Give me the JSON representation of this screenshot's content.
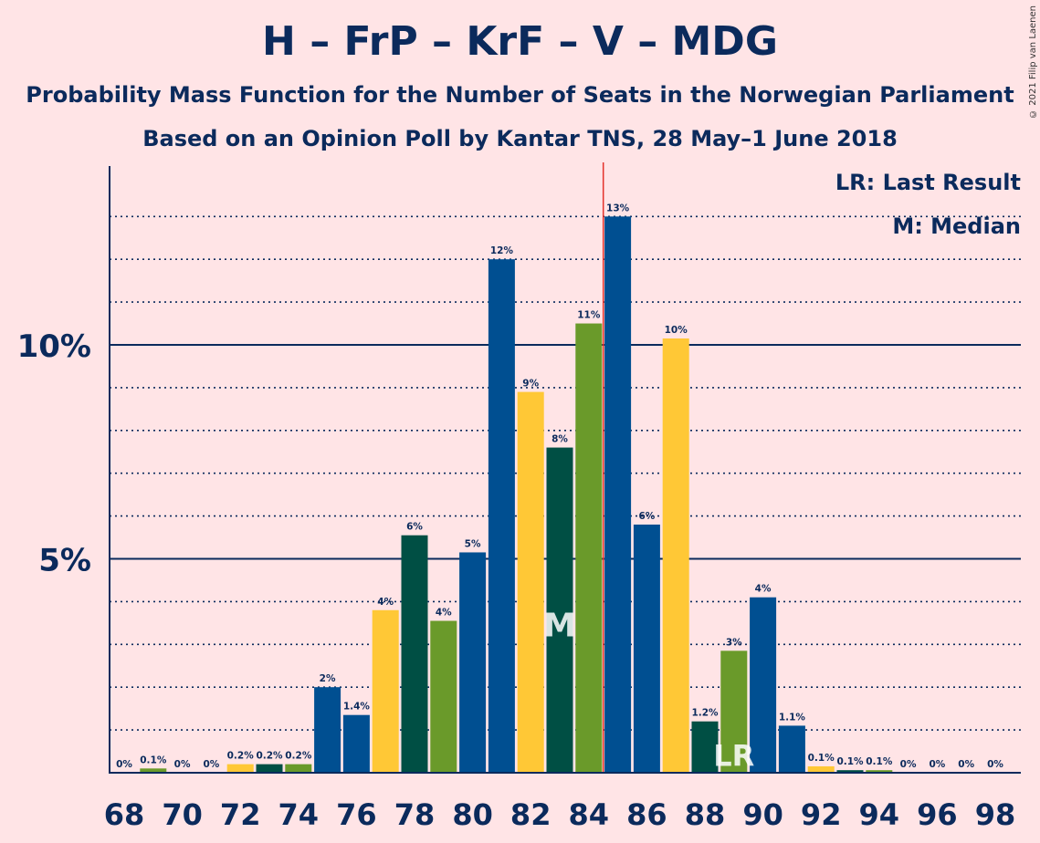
{
  "title": "H – FrP – KrF – V – MDG",
  "subtitle1": "Probability Mass Function for the Number of Seats in the Norwegian Parliament",
  "subtitle2": "Based on an Opinion Poll by Kantar TNS, 28 May–1 June 2018",
  "copyright": "© 2021 Filip van Laenen",
  "legend": {
    "lr": "LR: Last Result",
    "m": "M: Median"
  },
  "colors": {
    "background": "#FFE4E6",
    "navy": "#0B2A5C",
    "blue": "#004F91",
    "yellow": "#FFC836",
    "darkgreen": "#004F44",
    "olive": "#6A9A2A",
    "red": "#E4322B"
  },
  "chart_data": {
    "type": "bar",
    "x": [
      68,
      69,
      70,
      71,
      72,
      73,
      74,
      75,
      76,
      77,
      78,
      79,
      80,
      81,
      82,
      83,
      84,
      85,
      86,
      87,
      88,
      89,
      90,
      91,
      92,
      93,
      94,
      95,
      96,
      97,
      98
    ],
    "values": [
      0,
      0.1,
      0,
      0,
      0.2,
      0.2,
      0.2,
      2,
      1.35,
      3.8,
      5.55,
      3.55,
      5.15,
      12,
      8.9,
      7.6,
      10.5,
      13,
      5.8,
      10.15,
      1.2,
      2.85,
      4.1,
      1.1,
      0.15,
      0.06,
      0.06,
      0,
      0,
      0,
      0
    ],
    "labels": [
      "0%",
      "0.1%",
      "0%",
      "0%",
      "0.2%",
      "0.2%",
      "0.2%",
      "2%",
      "1.4%",
      "4%",
      "6%",
      "4%",
      "5%",
      "12%",
      "9%",
      "8%",
      "11%",
      "13%",
      "6%",
      "10%",
      "1.2%",
      "3%",
      "4%",
      "1.1%",
      "0.1%",
      "0.1%",
      "0.1%",
      "0%",
      "0%",
      "0%",
      "0%"
    ],
    "bar_colors": [
      "blue",
      "olive",
      "blue",
      "darkgreen",
      "yellow",
      "darkgreen",
      "olive",
      "blue",
      "blue",
      "yellow",
      "darkgreen",
      "olive",
      "blue",
      "blue",
      "yellow",
      "darkgreen",
      "olive",
      "blue",
      "blue",
      "yellow",
      "darkgreen",
      "olive",
      "blue",
      "blue",
      "yellow",
      "darkgreen",
      "olive",
      "blue",
      "blue",
      "yellow",
      "darkgreen"
    ],
    "x_tick_labels": [
      "68",
      "70",
      "72",
      "74",
      "76",
      "78",
      "80",
      "82",
      "84",
      "86",
      "88",
      "90",
      "92",
      "94",
      "96",
      "98"
    ],
    "y_tick_labels": [
      "5%",
      "10%"
    ],
    "y_ticks": [
      5,
      10
    ],
    "ylim": [
      0,
      14
    ],
    "median": 83,
    "median_label": "M",
    "last_result": 89,
    "last_result_label": "LR",
    "majority_line": 84.5
  }
}
